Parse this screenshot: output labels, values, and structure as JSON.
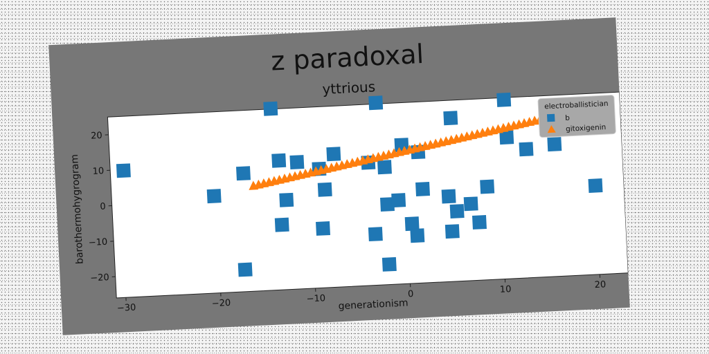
{
  "chart_data": {
    "type": "scatter",
    "title": "z paradoxal",
    "subtitle": "yttrious",
    "xlabel": "generationism",
    "ylabel": "barothermohygrogram",
    "xlim": [
      -31,
      23
    ],
    "ylim": [
      -26,
      25
    ],
    "xticks": [
      -30,
      -20,
      -10,
      0,
      10,
      20
    ],
    "yticks": [
      -20,
      -10,
      0,
      10,
      20
    ],
    "grid": false,
    "legend": {
      "title": "electroballistician",
      "position": "top-right"
    },
    "series": [
      {
        "name": "b",
        "marker": "square",
        "color": "#1f77b4",
        "x": [
          -29.6,
          -13.8,
          -2.7,
          5.1,
          10.8,
          -20.2,
          -17.0,
          -13.2,
          -11.3,
          -9.0,
          -7.4,
          -3.8,
          -2.1,
          -0.2,
          1.5,
          10.9,
          12.9,
          15.9,
          20.0,
          -8.5,
          -12.6,
          -2.0,
          -0.8,
          1.8,
          4.5,
          5.3,
          6.8,
          8.6,
          -13.2,
          -8.9,
          -3.4,
          0.5,
          1.0,
          4.7,
          7.6,
          -17.3,
          -2.1
        ],
        "y": [
          9.7,
          25.1,
          25.3,
          20.0,
          24.4,
          1.3,
          7.3,
          10.4,
          9.7,
          7.5,
          11.5,
          8.6,
          7.1,
          13.1,
          10.9,
          13.8,
          10.2,
          11.2,
          -1.0,
          1.6,
          -0.8,
          -3.4,
          -2.4,
          0.4,
          -2.0,
          -6.3,
          -4.4,
          0.2,
          -7.7,
          -9.3,
          -11.6,
          -9.2,
          -12.6,
          -11.9,
          -9.7,
          -19.8,
          -20.3
        ]
      },
      {
        "name": "gitoxigenin",
        "marker": "triangle",
        "color": "#ff7f0e",
        "x_start": -16.0,
        "x_end": 14.5,
        "y_start": 3.5,
        "y_end": 18.2,
        "points": 56
      }
    ]
  }
}
